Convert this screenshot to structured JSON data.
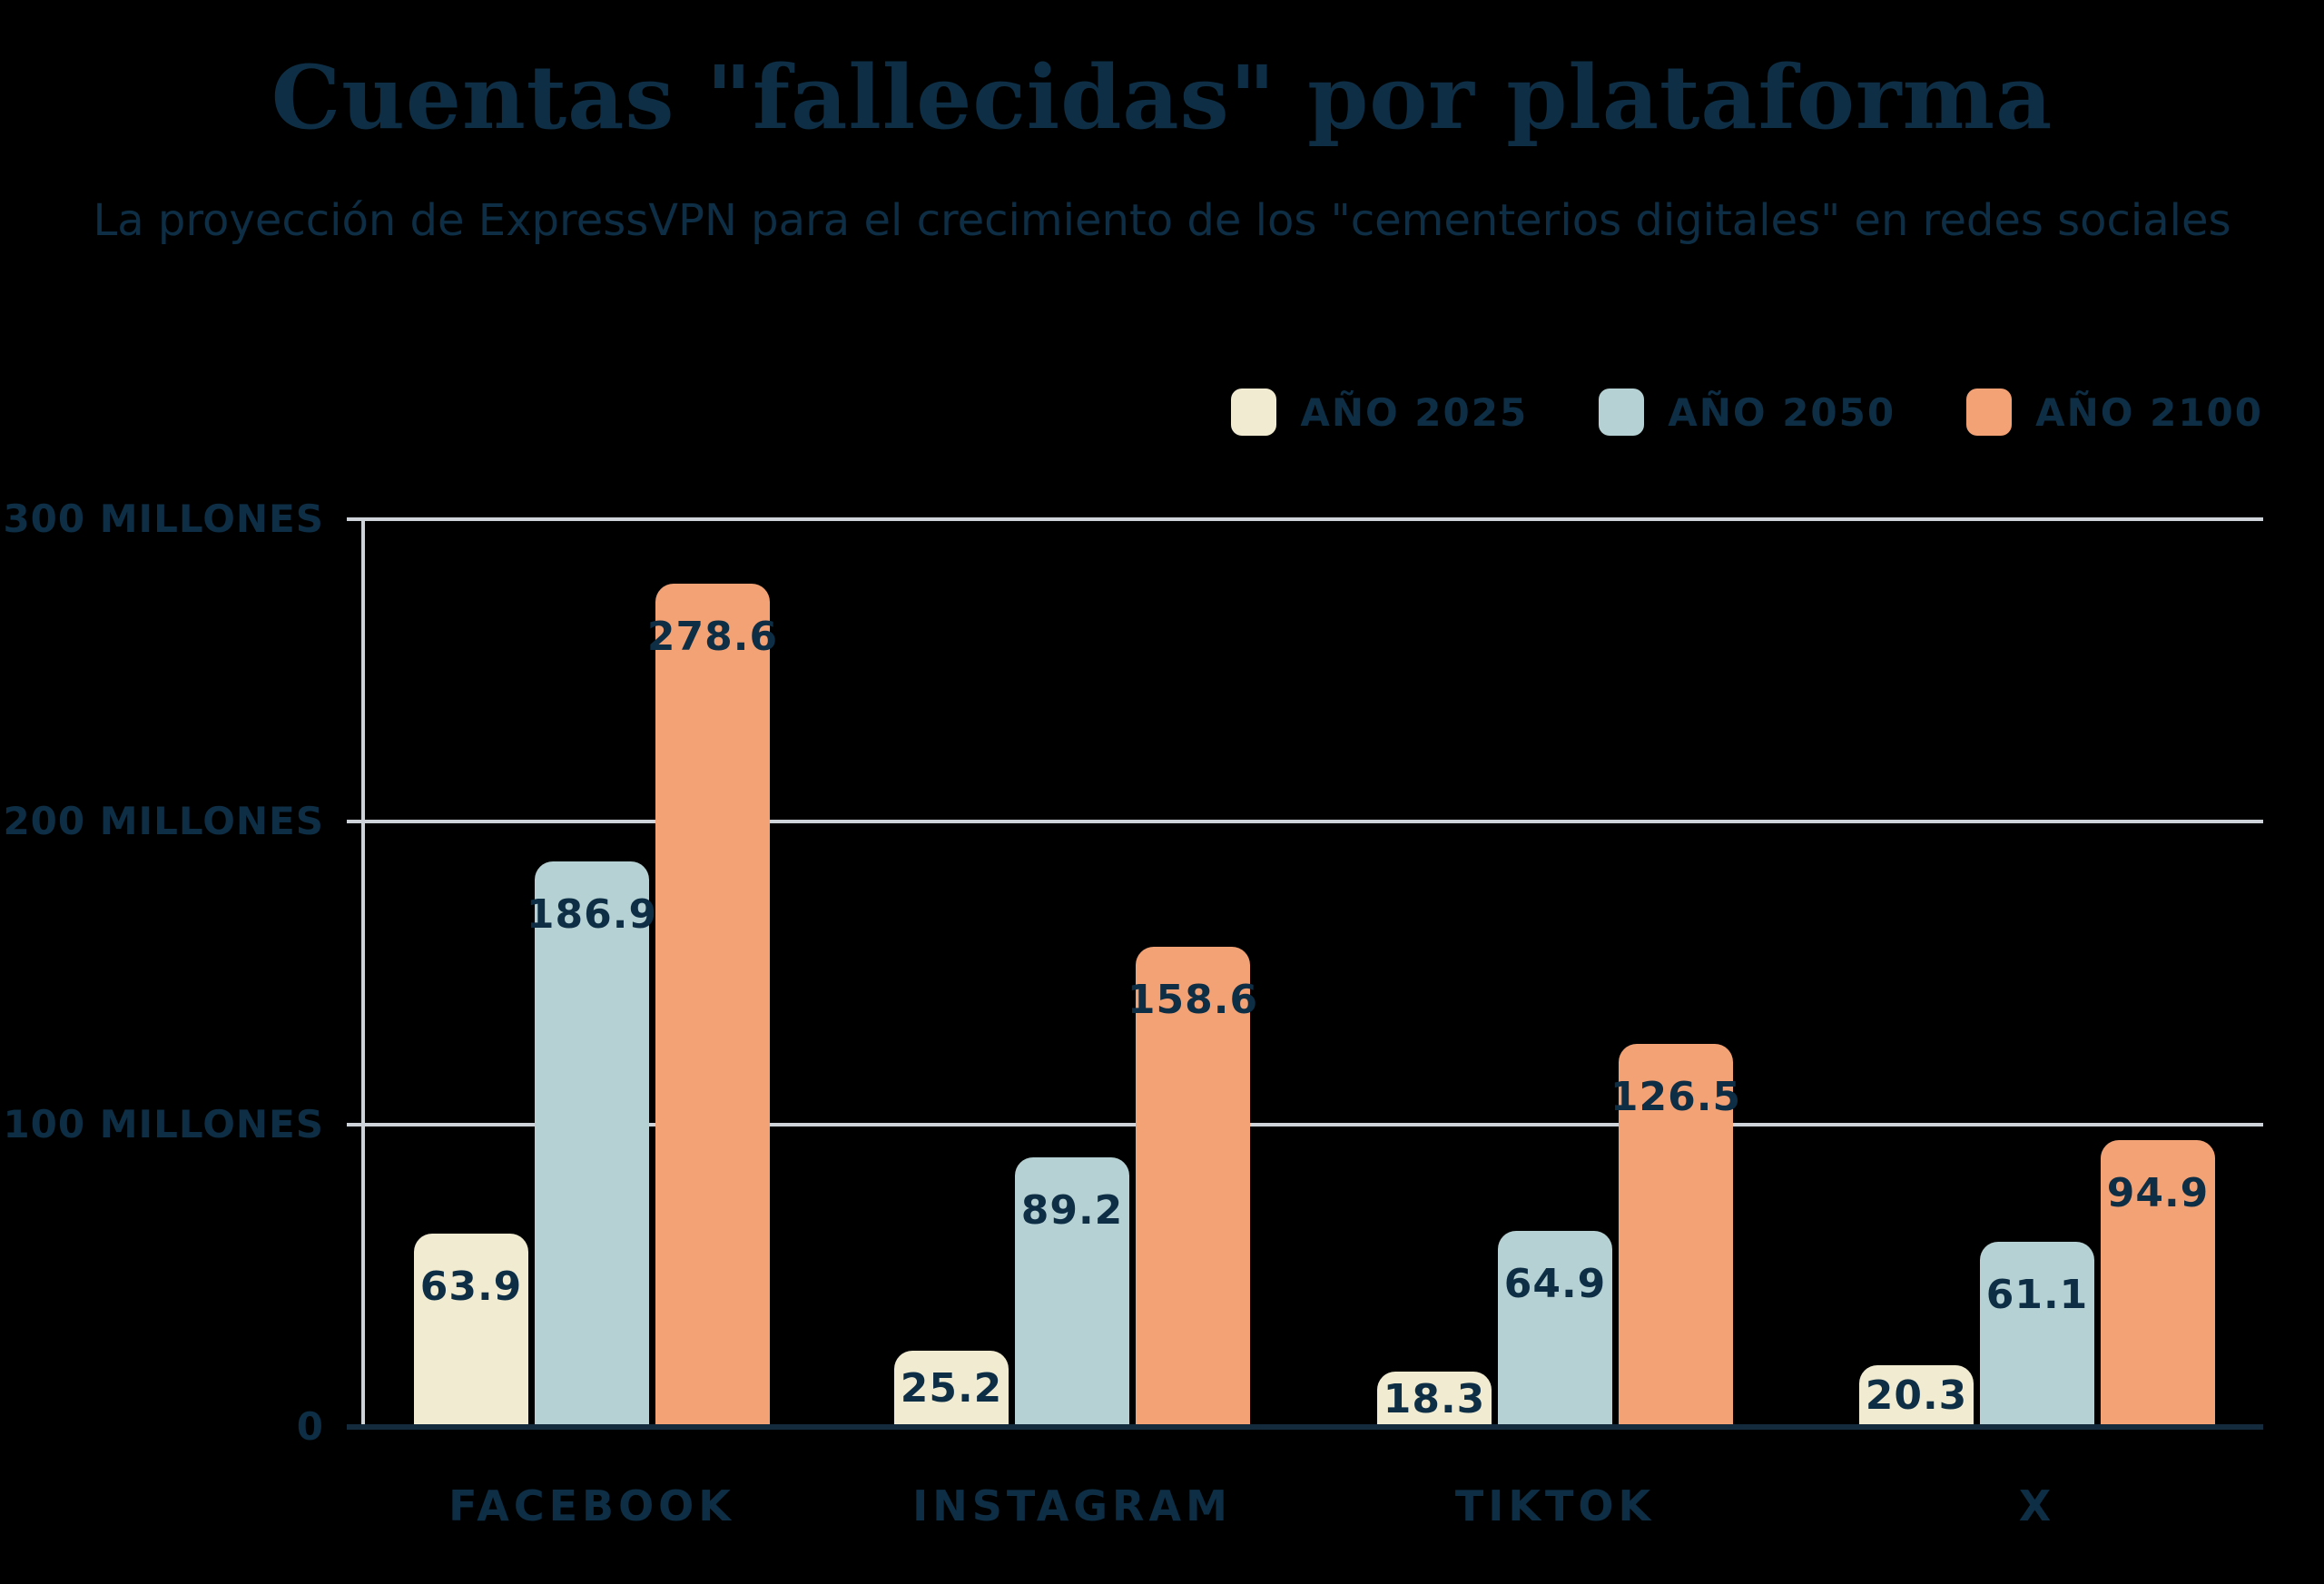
{
  "title": "Cuentas \"fallecidas\" por plataforma",
  "subtitle": "La proyección de ExpressVPN para el crecimiento de los \"cementerios digitales\" en redes sociales",
  "colors": {
    "background": "#000000",
    "text_navy": "#0d2e45",
    "gridline_gray": "#ced3d9",
    "baseline_navy": "#132b3d",
    "series_2025": "#f0ebd1",
    "series_2050": "#b6d1d3",
    "series_2100": "#f3a276"
  },
  "legend": {
    "position": "top-right",
    "items": [
      {
        "label": "AÑO 2025",
        "color": "#f0ebd1"
      },
      {
        "label": "AÑO 2050",
        "color": "#b6d1d3"
      },
      {
        "label": "AÑO 2100",
        "color": "#f3a276"
      }
    ]
  },
  "y_axis": {
    "tick_labels": [
      "300 MILLONES",
      "200 MILLONES",
      "100 MILLONES",
      "0"
    ],
    "tick_values": [
      300,
      200,
      100,
      0
    ]
  },
  "chart_data": {
    "type": "bar",
    "title": "Cuentas \"fallecidas\" por plataforma",
    "subtitle": "La proyección de ExpressVPN para el crecimiento de los \"cementerios digitales\" en redes sociales",
    "categories": [
      "FACEBOOK",
      "INSTAGRAM",
      "TIKTOK",
      "X"
    ],
    "series": [
      {
        "name": "AÑO 2025",
        "color": "#f0ebd1",
        "values": [
          63.9,
          25.2,
          18.3,
          20.3
        ]
      },
      {
        "name": "AÑO 2050",
        "color": "#b6d1d3",
        "values": [
          186.9,
          89.2,
          64.9,
          61.1
        ]
      },
      {
        "name": "AÑO 2100",
        "color": "#f3a276",
        "values": [
          278.6,
          158.6,
          126.5,
          94.9
        ]
      }
    ],
    "xlabel": "",
    "ylabel": "MILLONES",
    "ylim": [
      0,
      300
    ],
    "grid": true,
    "legend_position": "top-right",
    "value_labels": "inside-top"
  }
}
